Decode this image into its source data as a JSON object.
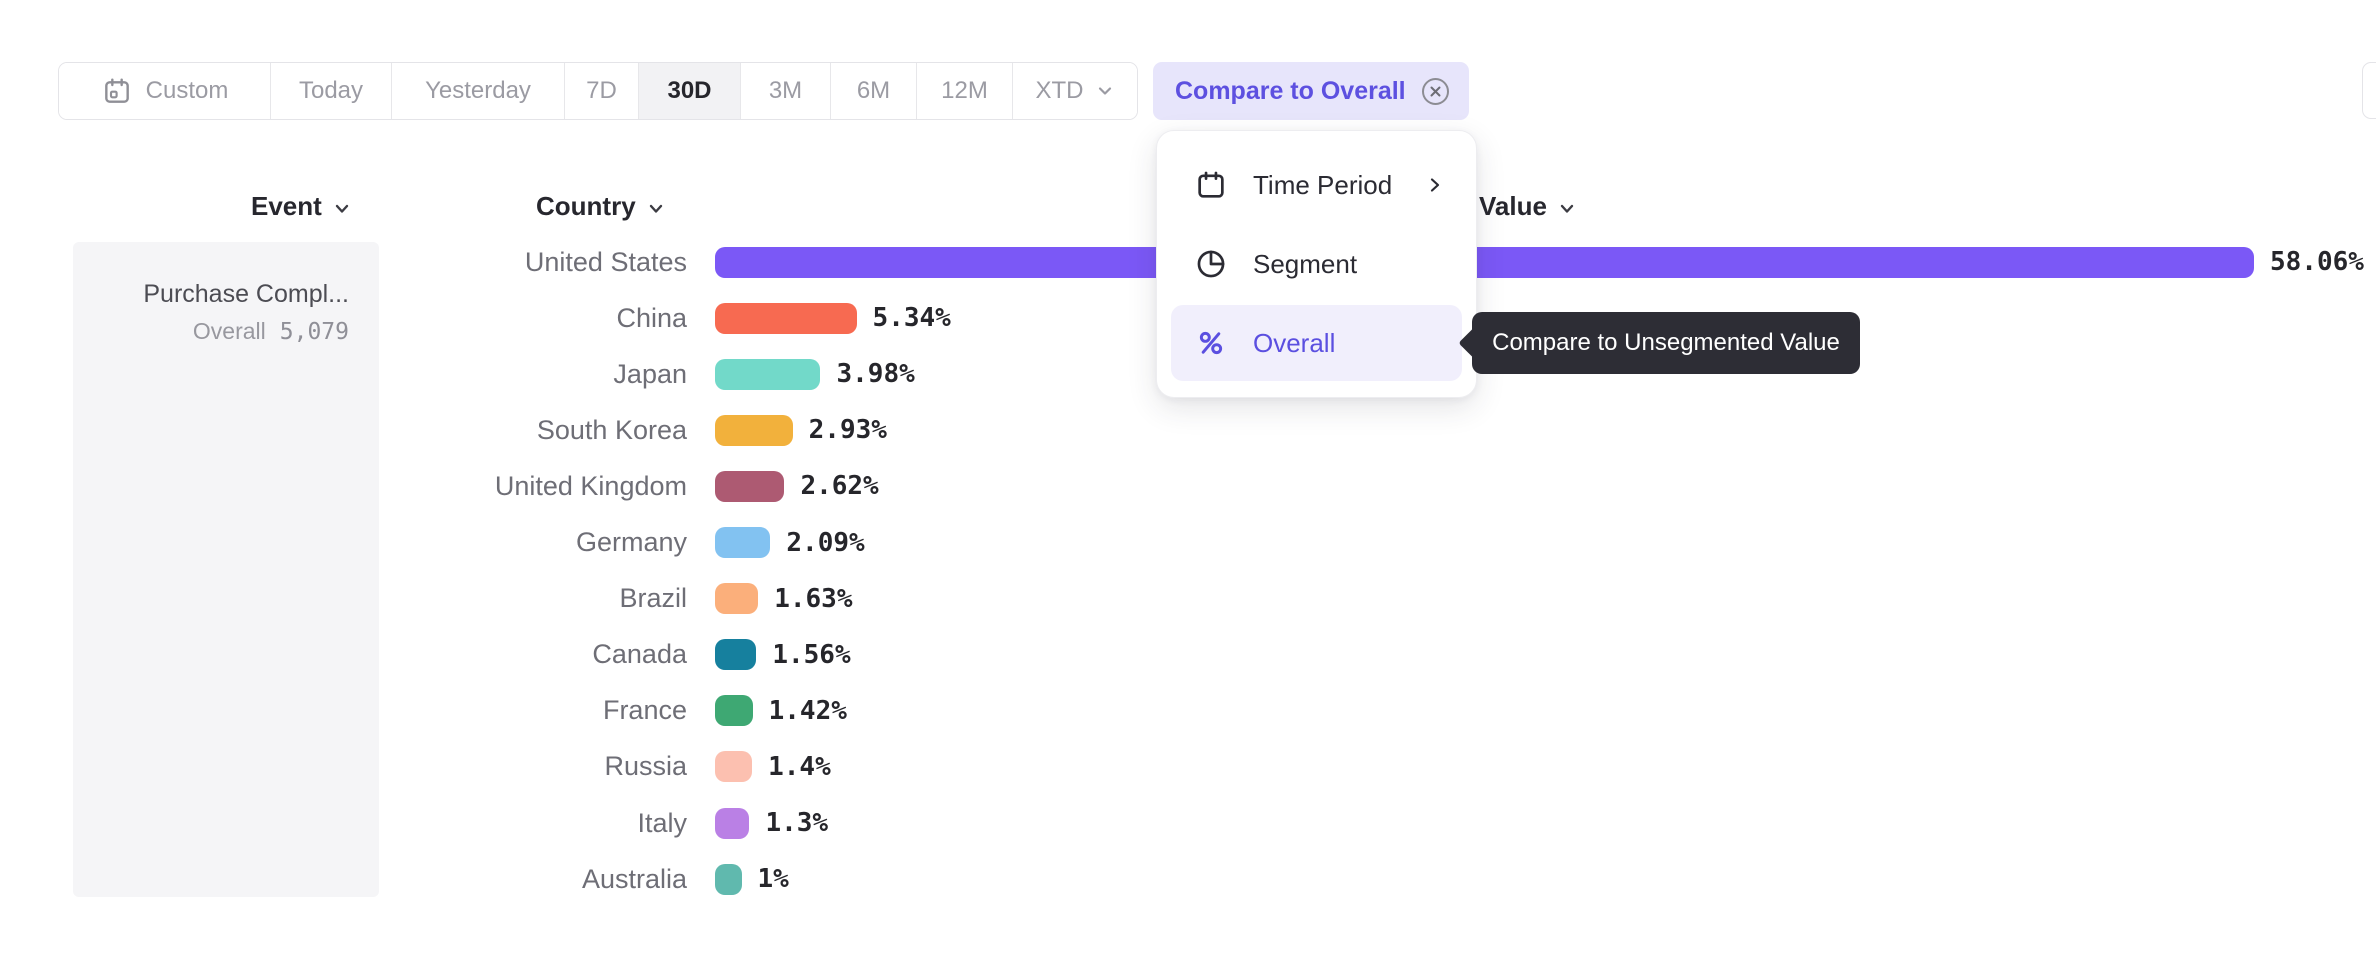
{
  "toolbar": {
    "items": [
      {
        "label": "Custom",
        "icon": "calendar-icon"
      },
      {
        "label": "Today"
      },
      {
        "label": "Yesterday"
      },
      {
        "label": "7D"
      },
      {
        "label": "30D",
        "active": true
      },
      {
        "label": "3M"
      },
      {
        "label": "6M"
      },
      {
        "label": "12M"
      },
      {
        "label": "XTD",
        "icon": "chevron-down-icon"
      }
    ],
    "compare_chip": {
      "label": "Compare to Overall",
      "icon": "circle-close-icon"
    }
  },
  "columns": {
    "event": "Event",
    "country": "Country",
    "value": "Value"
  },
  "event_panel": {
    "name": "Purchase Compl...",
    "overall_label": "Overall",
    "overall_value": "5,079"
  },
  "menu": {
    "items": [
      {
        "label": "Time Period",
        "icon": "calendar-icon",
        "has_submenu": true
      },
      {
        "label": "Segment",
        "icon": "segment-icon"
      },
      {
        "label": "Overall",
        "icon": "percent-icon",
        "selected": true
      }
    ]
  },
  "tooltip": {
    "text": "Compare to Unsegmented Value"
  },
  "chart_data": {
    "type": "bar",
    "orientation": "horizontal",
    "title": "",
    "xlabel": "Value",
    "ylabel": "Country",
    "xlim": [
      0,
      60
    ],
    "grid": false,
    "categories": [
      "United States",
      "China",
      "Japan",
      "South Korea",
      "United Kingdom",
      "Germany",
      "Brazil",
      "Canada",
      "France",
      "Russia",
      "Italy",
      "Australia"
    ],
    "values": [
      58.06,
      5.34,
      3.98,
      2.93,
      2.62,
      2.09,
      1.63,
      1.56,
      1.42,
      1.4,
      1.3,
      1
    ],
    "labels": [
      "58.06%",
      "5.34%",
      "3.98%",
      "2.93%",
      "2.62%",
      "2.09%",
      "1.63%",
      "1.56%",
      "1.42%",
      "1.4%",
      "1.3%",
      "1%"
    ],
    "colors": [
      "#7b58f6",
      "#f76a51",
      "#72d9c9",
      "#f2b13c",
      "#ad5a72",
      "#82c2f1",
      "#fbaf7b",
      "#16809e",
      "#3ea873",
      "#fcc0b0",
      "#ba80e5",
      "#60b9ae"
    ]
  },
  "colors": {
    "accent": "#5d50e0",
    "chip_bg": "#e7e5fb",
    "menu_highlight": "#f1effc",
    "tooltip_bg": "#2d2d35",
    "active_segment_bg": "#f2f2f4",
    "label_gray": "#6e6e76"
  }
}
